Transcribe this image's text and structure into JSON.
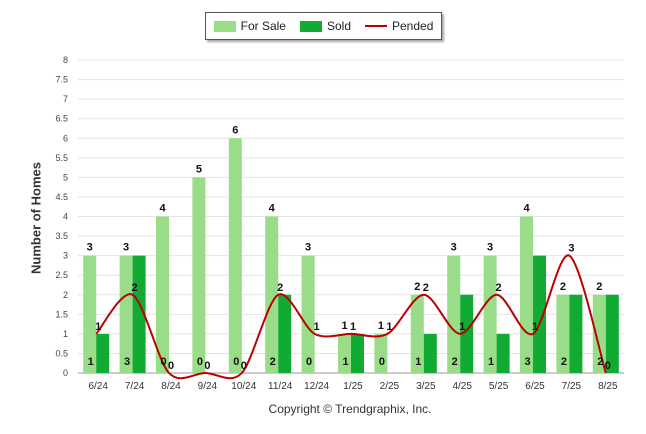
{
  "legend": {
    "for_sale": "For Sale",
    "sold": "Sold",
    "pended": "Pended"
  },
  "copyright": "Copyright © Trendgraphix, Inc.",
  "chart_data": {
    "type": "bar",
    "categories": [
      "6/24",
      "7/24",
      "8/24",
      "9/24",
      "10/24",
      "11/24",
      "12/24",
      "1/25",
      "2/25",
      "3/25",
      "4/25",
      "5/25",
      "6/25",
      "7/25",
      "8/25"
    ],
    "series": [
      {
        "name": "For Sale",
        "kind": "bar",
        "color": "#99dd88",
        "values": [
          3,
          3,
          4,
          5,
          6,
          4,
          3,
          1,
          1,
          2,
          3,
          3,
          4,
          2,
          2
        ]
      },
      {
        "name": "Sold",
        "kind": "bar",
        "color": "#11aa33",
        "values": [
          1,
          3,
          0,
          0,
          0,
          2,
          0,
          1,
          0,
          1,
          2,
          1,
          3,
          2,
          2
        ]
      },
      {
        "name": "Pended",
        "kind": "line",
        "color": "#bb0000",
        "values": [
          1,
          2,
          0,
          0,
          0,
          2,
          1,
          1,
          1,
          2,
          1,
          2,
          1,
          3,
          0
        ]
      }
    ],
    "xlabel": "",
    "ylabel": "Number of Homes",
    "ylim": [
      0,
      8
    ],
    "yticks": [
      "0",
      "0.5",
      "1",
      "1.5",
      "2",
      "2.5",
      "3",
      "3.5",
      "4",
      "4.5",
      "5",
      "5.5",
      "6",
      "6.5",
      "7",
      "7.5",
      "8"
    ],
    "grid": true,
    "legend_position": "top-center"
  }
}
